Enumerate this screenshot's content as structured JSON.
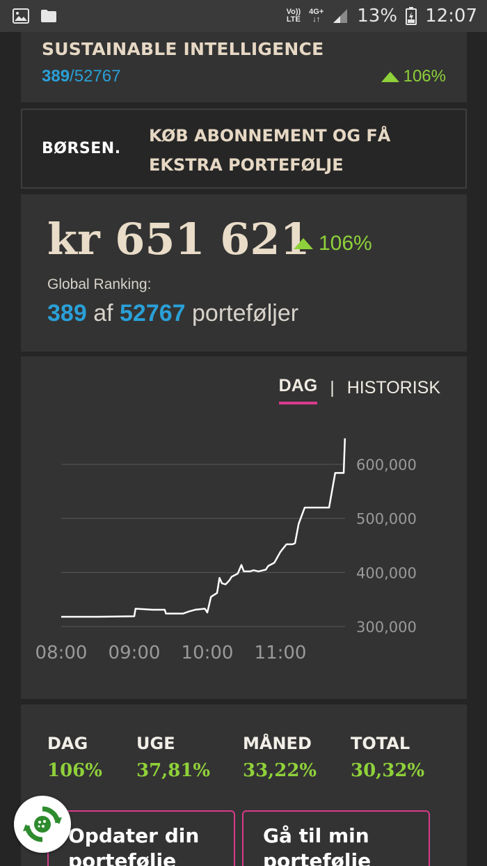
{
  "status_bar": {
    "network_label_top": "Vo))",
    "network_label_bottom": "LTE",
    "data_label_top": "4G+",
    "data_label_bottom": "↓↑",
    "battery": "13%",
    "time": "12:07"
  },
  "top_card": {
    "title": "SUSTAINABLE INTELLIGENCE",
    "rank": "389",
    "rank_total": "/52767",
    "change": "106%"
  },
  "ad": {
    "logo": "BØRSEN.",
    "text": "KØB ABONNEMENT OG FÅ EKSTRA PORTEFØLJE"
  },
  "portfolio": {
    "value": "kr 651 621",
    "change": "106%",
    "ranking_label": "Global Ranking:",
    "rank": "389",
    "rank_of": "af",
    "rank_total": "52767",
    "rank_suffix": "porteføljer"
  },
  "chart": {
    "tab_day": "DAG",
    "tab_separator": "|",
    "tab_history": "HISTORISK"
  },
  "chart_data": {
    "type": "line",
    "x_ticks": [
      "08:00",
      "09:00",
      "10:00",
      "11:00"
    ],
    "y_ticks": [
      "300,000",
      "400,000",
      "500,000",
      "600,000"
    ],
    "ylim": [
      300000,
      600000
    ],
    "line_color": "#ffffff",
    "grid": true,
    "x": [
      "08:00",
      "08:30",
      "09:00",
      "09:01",
      "09:15",
      "09:25",
      "09:26",
      "09:40",
      "09:45",
      "09:50",
      "09:58",
      "10:00",
      "10:03",
      "10:08",
      "10:10",
      "10:12",
      "10:15",
      "10:18",
      "10:20",
      "10:25",
      "10:28",
      "10:30",
      "10:35",
      "10:38",
      "10:42",
      "10:48",
      "10:50",
      "10:55",
      "11:00",
      "11:05",
      "11:10",
      "11:12",
      "11:15",
      "11:20",
      "11:25",
      "11:28",
      "11:30",
      "11:40",
      "11:45",
      "11:48",
      "11:52",
      "11:53"
    ],
    "y": [
      318000,
      318000,
      319000,
      333000,
      331000,
      331000,
      324000,
      324000,
      328000,
      331000,
      333000,
      326000,
      355000,
      362000,
      390000,
      380000,
      378000,
      385000,
      392000,
      398000,
      414000,
      402000,
      402000,
      404000,
      402000,
      405000,
      412000,
      418000,
      438000,
      452000,
      452000,
      454000,
      490000,
      520000,
      520000,
      520000,
      520000,
      520000,
      584000,
      584000,
      584000,
      648000
    ]
  },
  "stats": {
    "day_label": "DAG",
    "day_value": "106%",
    "week_label": "UGE",
    "week_value": "37,81%",
    "month_label": "MÅNED",
    "month_value": "33,22%",
    "total_label": "TOTAL",
    "total_value": "30,32%"
  },
  "buttons": {
    "update_portfolio": "Opdater din portefølje",
    "goto_portfolio": "Gå til min portefølje"
  },
  "colors": {
    "accent_blue": "#2aa0d8",
    "positive_green": "#8fd13a",
    "accent_pink": "#d93a8c"
  }
}
